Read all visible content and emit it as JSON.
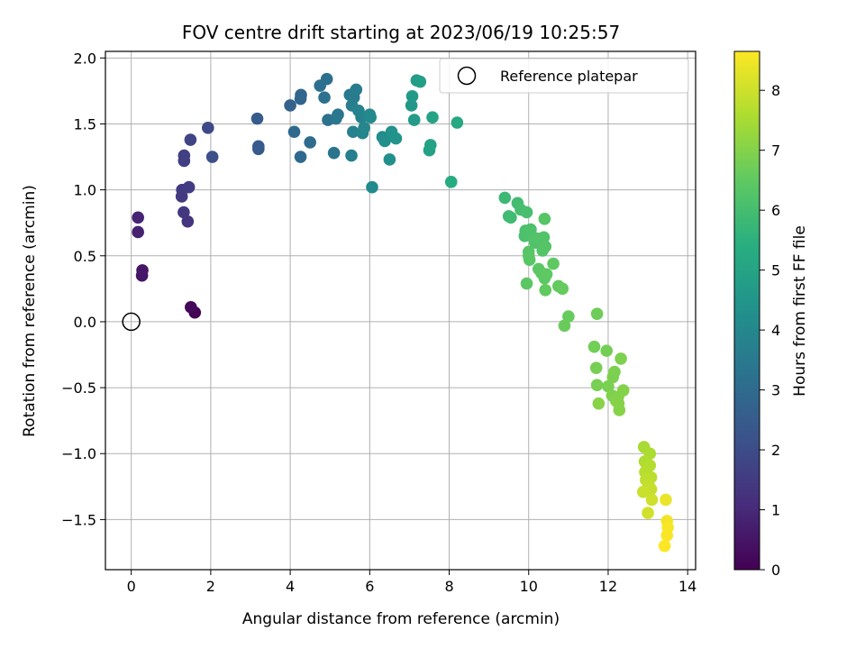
{
  "chart_data": {
    "type": "scatter",
    "title": "FOV centre drift starting at 2023/06/19 10:25:57",
    "xlabel": "Angular distance from reference (arcmin)",
    "ylabel": "Rotation from reference (arcmin)",
    "xlim": [
      -0.65,
      14.2
    ],
    "ylim": [
      -1.88,
      2.05
    ],
    "xticks": [
      "0",
      "2",
      "4",
      "6",
      "8",
      "10",
      "12",
      "14"
    ],
    "yticks": [
      "−1.5",
      "−1.0",
      "−0.5",
      "0.0",
      "0.5",
      "1.0",
      "1.5",
      "2.0"
    ],
    "grid": true,
    "legend": {
      "placement": "top-right",
      "entries": [
        "Reference platepar"
      ]
    },
    "reference_point": {
      "x": 0,
      "y": 0
    },
    "colorbar": {
      "label": "Hours from first FF file",
      "range": [
        0,
        8.65
      ],
      "ticks": [
        "0",
        "1",
        "2",
        "3",
        "4",
        "5",
        "6",
        "7",
        "8"
      ],
      "colormap": "viridis"
    },
    "points": [
      [
        1.6,
        0.07,
        0.0
      ],
      [
        1.5,
        0.11,
        0.15
      ],
      [
        0.27,
        0.35,
        0.5
      ],
      [
        0.28,
        0.39,
        0.55
      ],
      [
        0.17,
        0.68,
        0.8
      ],
      [
        0.17,
        0.79,
        0.85
      ],
      [
        1.42,
        0.76,
        1.3
      ],
      [
        1.32,
        0.83,
        1.4
      ],
      [
        1.27,
        0.95,
        1.45
      ],
      [
        1.28,
        1.0,
        1.5
      ],
      [
        1.45,
        1.02,
        1.55
      ],
      [
        1.33,
        1.22,
        1.6
      ],
      [
        1.33,
        1.26,
        1.65
      ],
      [
        1.49,
        1.38,
        1.75
      ],
      [
        1.93,
        1.47,
        1.9
      ],
      [
        2.04,
        1.25,
        2.1
      ],
      [
        3.2,
        1.31,
        2.4
      ],
      [
        3.2,
        1.33,
        2.45
      ],
      [
        3.17,
        1.54,
        2.5
      ],
      [
        4.0,
        1.64,
        2.7
      ],
      [
        4.26,
        1.69,
        2.8
      ],
      [
        4.27,
        1.72,
        2.85
      ],
      [
        4.1,
        1.44,
        2.9
      ],
      [
        4.26,
        1.25,
        2.95
      ],
      [
        4.5,
        1.36,
        3.0
      ],
      [
        4.75,
        1.79,
        3.1
      ],
      [
        4.92,
        1.84,
        3.15
      ],
      [
        4.86,
        1.7,
        3.2
      ],
      [
        4.95,
        1.53,
        3.25
      ],
      [
        5.1,
        1.28,
        3.3
      ],
      [
        5.15,
        1.54,
        3.35
      ],
      [
        5.2,
        1.57,
        3.4
      ],
      [
        5.5,
        1.72,
        3.5
      ],
      [
        5.6,
        1.7,
        3.55
      ],
      [
        5.66,
        1.76,
        3.6
      ],
      [
        5.55,
        1.64,
        3.65
      ],
      [
        5.54,
        1.26,
        3.7
      ],
      [
        5.58,
        1.44,
        3.75
      ],
      [
        5.72,
        1.6,
        3.8
      ],
      [
        5.79,
        1.55,
        3.85
      ],
      [
        5.82,
        1.43,
        3.9
      ],
      [
        5.86,
        1.47,
        3.95
      ],
      [
        6.0,
        1.57,
        4.0
      ],
      [
        6.02,
        1.55,
        4.05
      ],
      [
        6.06,
        1.02,
        4.1
      ],
      [
        6.32,
        1.4,
        4.2
      ],
      [
        6.38,
        1.37,
        4.25
      ],
      [
        6.5,
        1.23,
        4.3
      ],
      [
        6.55,
        1.44,
        4.35
      ],
      [
        6.66,
        1.39,
        4.4
      ],
      [
        7.05,
        1.64,
        4.6
      ],
      [
        7.07,
        1.71,
        4.65
      ],
      [
        7.12,
        1.53,
        4.7
      ],
      [
        7.18,
        1.83,
        4.75
      ],
      [
        7.27,
        1.82,
        4.8
      ],
      [
        7.5,
        1.3,
        4.9
      ],
      [
        7.53,
        1.34,
        4.95
      ],
      [
        7.58,
        1.55,
        5.0
      ],
      [
        8.2,
        1.51,
        5.2
      ],
      [
        8.05,
        1.06,
        5.3
      ],
      [
        9.4,
        0.94,
        5.8
      ],
      [
        9.5,
        0.8,
        5.85
      ],
      [
        9.55,
        0.79,
        5.9
      ],
      [
        9.72,
        0.9,
        5.95
      ],
      [
        9.8,
        0.85,
        6.0
      ],
      [
        9.95,
        0.83,
        6.05
      ],
      [
        9.9,
        0.65,
        6.1
      ],
      [
        9.92,
        0.69,
        6.12
      ],
      [
        10.0,
        0.66,
        6.15
      ],
      [
        10.05,
        0.7,
        6.18
      ],
      [
        10.12,
        0.64,
        6.2
      ],
      [
        10.16,
        0.6,
        6.22
      ],
      [
        10.25,
        0.63,
        6.24
      ],
      [
        10.38,
        0.64,
        6.26
      ],
      [
        10.35,
        0.54,
        6.28
      ],
      [
        10.42,
        0.57,
        6.3
      ],
      [
        10.4,
        0.78,
        6.32
      ],
      [
        10.0,
        0.53,
        6.34
      ],
      [
        10.0,
        0.5,
        6.36
      ],
      [
        10.02,
        0.47,
        6.38
      ],
      [
        9.95,
        0.29,
        6.4
      ],
      [
        10.25,
        0.4,
        6.42
      ],
      [
        10.32,
        0.37,
        6.44
      ],
      [
        10.4,
        0.33,
        6.46
      ],
      [
        10.45,
        0.36,
        6.48
      ],
      [
        10.62,
        0.44,
        6.5
      ],
      [
        10.42,
        0.24,
        6.52
      ],
      [
        10.75,
        0.27,
        6.55
      ],
      [
        10.85,
        0.25,
        6.58
      ],
      [
        11.0,
        0.04,
        6.6
      ],
      [
        10.9,
        -0.03,
        6.62
      ],
      [
        11.72,
        0.06,
        6.7
      ],
      [
        11.65,
        -0.19,
        6.75
      ],
      [
        11.96,
        -0.22,
        6.8
      ],
      [
        11.7,
        -0.35,
        6.82
      ],
      [
        11.72,
        -0.48,
        6.84
      ],
      [
        12.0,
        -0.49,
        6.86
      ],
      [
        12.12,
        -0.42,
        6.88
      ],
      [
        12.16,
        -0.38,
        6.9
      ],
      [
        12.32,
        -0.28,
        6.92
      ],
      [
        12.1,
        -0.56,
        6.94
      ],
      [
        12.25,
        -0.57,
        6.96
      ],
      [
        12.2,
        -0.6,
        6.98
      ],
      [
        12.38,
        -0.52,
        7.0
      ],
      [
        12.26,
        -0.62,
        7.02
      ],
      [
        12.28,
        -0.67,
        7.04
      ],
      [
        11.76,
        -0.62,
        7.06
      ],
      [
        12.9,
        -0.95,
        7.5
      ],
      [
        13.05,
        -1.0,
        7.55
      ],
      [
        12.92,
        -1.06,
        7.6
      ],
      [
        13.05,
        -1.09,
        7.65
      ],
      [
        12.93,
        -1.14,
        7.7
      ],
      [
        13.08,
        -1.18,
        7.75
      ],
      [
        12.95,
        -1.2,
        7.8
      ],
      [
        13.02,
        -1.24,
        7.85
      ],
      [
        13.08,
        -1.27,
        7.9
      ],
      [
        12.88,
        -1.29,
        7.95
      ],
      [
        13.1,
        -1.35,
        8.0
      ],
      [
        13.0,
        -1.45,
        8.05
      ],
      [
        13.45,
        -1.35,
        8.4
      ],
      [
        13.48,
        -1.51,
        8.5
      ],
      [
        13.5,
        -1.56,
        8.55
      ],
      [
        13.48,
        -1.62,
        8.6
      ],
      [
        13.42,
        -1.7,
        8.65
      ]
    ]
  }
}
